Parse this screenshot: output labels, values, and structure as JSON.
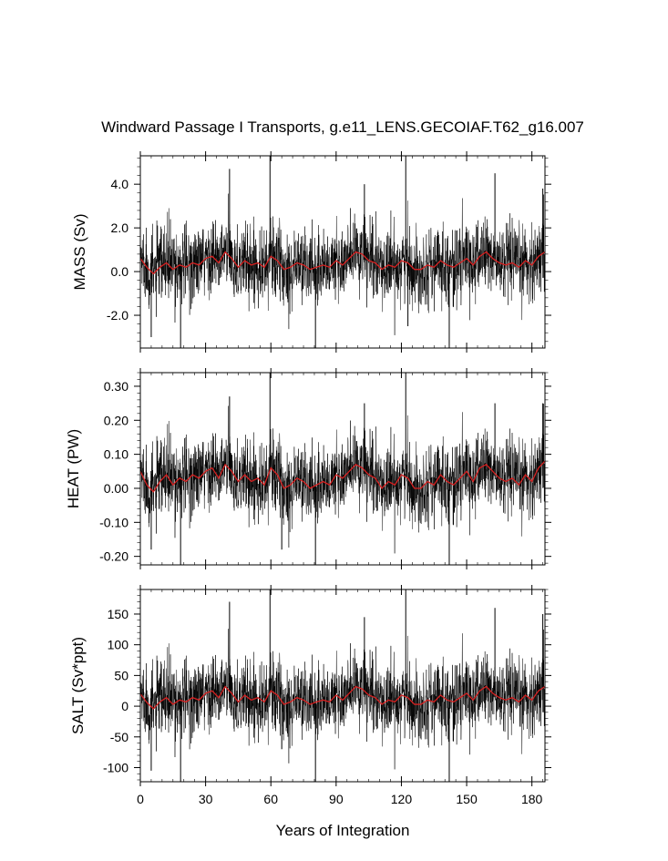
{
  "figure": {
    "title": "Windward Passage I Transports, g.e11_LENS.GECOIAF.T62_g16.007",
    "xlabel": "Years of Integration"
  },
  "colors": {
    "raw_series": "#000000",
    "smoothed_series": "#d62020",
    "axes": "#000000",
    "background": "#ffffff"
  },
  "chart_data": [
    {
      "type": "line",
      "ylabel": "MASS (Sv)",
      "xlim": [
        0,
        186
      ],
      "ylim": [
        -3.5,
        5.3
      ],
      "xticks": [
        0,
        30,
        60,
        90,
        120,
        150,
        180
      ],
      "yticks": [
        -2.0,
        0.0,
        2.0,
        4.0
      ],
      "ytick_labels": [
        "-2.0",
        "0.0",
        "2.0",
        "4.0"
      ],
      "x_tick_labels_shown": false,
      "grid": false,
      "series": [
        {
          "role": "raw",
          "color": "#000000",
          "mean": 0.3,
          "std": 0.85,
          "spikes": [
            [
              41,
              4.7
            ],
            [
              59.6,
              5.3
            ],
            [
              103,
              4.0
            ],
            [
              122,
              5.3
            ],
            [
              163,
              4.5
            ],
            [
              185,
              3.8
            ],
            [
              18.5,
              -3.5
            ],
            [
              80.5,
              -3.5
            ],
            [
              142,
              -3.5
            ],
            [
              5,
              -3.0
            ],
            [
              123,
              -2.5
            ]
          ]
        },
        {
          "role": "smoothed",
          "color": "#d62020",
          "x": [
            0,
            3,
            6,
            9,
            12,
            15,
            18,
            21,
            24,
            27,
            30,
            33,
            36,
            39,
            42,
            45,
            48,
            51,
            54,
            57,
            60,
            63,
            66,
            69,
            72,
            75,
            78,
            81,
            84,
            87,
            90,
            93,
            96,
            99,
            102,
            105,
            108,
            111,
            114,
            117,
            120,
            123,
            126,
            129,
            132,
            135,
            138,
            141,
            144,
            147,
            150,
            153,
            156,
            159,
            162,
            165,
            168,
            171,
            174,
            177,
            180,
            183,
            186
          ],
          "values": [
            0.6,
            0.2,
            -0.1,
            0.2,
            0.4,
            0.1,
            0.3,
            0.2,
            0.4,
            0.3,
            0.6,
            0.7,
            0.4,
            0.9,
            0.6,
            0.2,
            0.5,
            0.3,
            0.4,
            0.2,
            0.7,
            0.5,
            0.1,
            0.2,
            0.4,
            0.3,
            0.1,
            0.2,
            0.3,
            0.2,
            0.5,
            0.3,
            0.6,
            0.9,
            0.8,
            0.5,
            0.4,
            0.1,
            0.3,
            0.2,
            0.5,
            0.4,
            0.1,
            0.1,
            0.3,
            0.2,
            0.5,
            0.3,
            0.2,
            0.4,
            0.6,
            0.3,
            0.7,
            0.9,
            0.6,
            0.4,
            0.3,
            0.4,
            0.2,
            0.5,
            0.3,
            0.7,
            0.9
          ]
        }
      ]
    },
    {
      "type": "line",
      "ylabel": "HEAT (PW)",
      "xlim": [
        0,
        186
      ],
      "ylim": [
        -0.225,
        0.34
      ],
      "xticks": [
        0,
        30,
        60,
        90,
        120,
        150,
        180
      ],
      "yticks": [
        -0.2,
        -0.1,
        0.0,
        0.1,
        0.2,
        0.3
      ],
      "ytick_labels": [
        "-0.20",
        "-0.10",
        "0.00",
        "0.10",
        "0.20",
        "0.30"
      ],
      "x_tick_labels_shown": false,
      "grid": false,
      "series": [
        {
          "role": "raw",
          "color": "#000000",
          "mean": 0.03,
          "std": 0.055,
          "spikes": [
            [
              41,
              0.27
            ],
            [
              59.6,
              0.34
            ],
            [
              103,
              0.25
            ],
            [
              122,
              0.34
            ],
            [
              163,
              0.25
            ],
            [
              185,
              0.25
            ],
            [
              18.5,
              -0.225
            ],
            [
              80.5,
              -0.225
            ],
            [
              142,
              -0.225
            ],
            [
              5,
              -0.18
            ],
            [
              65,
              -0.18
            ]
          ]
        },
        {
          "role": "smoothed",
          "color": "#d62020",
          "x": [
            0,
            3,
            6,
            9,
            12,
            15,
            18,
            21,
            24,
            27,
            30,
            33,
            36,
            39,
            42,
            45,
            48,
            51,
            54,
            57,
            60,
            63,
            66,
            69,
            72,
            75,
            78,
            81,
            84,
            87,
            90,
            93,
            96,
            99,
            102,
            105,
            108,
            111,
            114,
            117,
            120,
            123,
            126,
            129,
            132,
            135,
            138,
            141,
            144,
            147,
            150,
            153,
            156,
            159,
            162,
            165,
            168,
            171,
            174,
            177,
            180,
            183,
            186
          ],
          "values": [
            0.05,
            0.01,
            -0.01,
            0.02,
            0.04,
            0.01,
            0.03,
            0.02,
            0.04,
            0.03,
            0.05,
            0.06,
            0.03,
            0.07,
            0.05,
            0.02,
            0.04,
            0.02,
            0.03,
            0.01,
            0.06,
            0.04,
            0.0,
            0.01,
            0.03,
            0.02,
            0.0,
            0.01,
            0.02,
            0.01,
            0.04,
            0.03,
            0.05,
            0.07,
            0.06,
            0.04,
            0.03,
            0.0,
            0.02,
            0.01,
            0.04,
            0.03,
            0.0,
            0.0,
            0.02,
            0.01,
            0.04,
            0.02,
            0.01,
            0.03,
            0.05,
            0.02,
            0.06,
            0.07,
            0.05,
            0.03,
            0.02,
            0.03,
            0.01,
            0.04,
            0.02,
            0.06,
            0.08
          ]
        }
      ]
    },
    {
      "type": "line",
      "ylabel": "SALT (Sv*ppt)",
      "xlim": [
        0,
        186
      ],
      "ylim": [
        -123,
        190
      ],
      "xticks": [
        0,
        30,
        60,
        90,
        120,
        150,
        180
      ],
      "xtick_labels": [
        "0",
        "30",
        "60",
        "90",
        "120",
        "150",
        "180"
      ],
      "yticks": [
        -100,
        -50,
        0,
        50,
        100,
        150
      ],
      "ytick_labels": [
        "-100",
        "-50",
        "0",
        "50",
        "100",
        "150"
      ],
      "x_tick_labels_shown": true,
      "grid": false,
      "series": [
        {
          "role": "raw",
          "color": "#000000",
          "mean": 11,
          "std": 30,
          "spikes": [
            [
              41,
              170
            ],
            [
              59.6,
              190
            ],
            [
              103,
              145
            ],
            [
              122,
              190
            ],
            [
              163,
              160
            ],
            [
              185,
              150
            ],
            [
              18.5,
              -123
            ],
            [
              80.5,
              -123
            ],
            [
              142,
              -123
            ],
            [
              5,
              -105
            ],
            [
              65,
              -70
            ]
          ]
        },
        {
          "role": "smoothed",
          "color": "#d62020",
          "x": [
            0,
            3,
            6,
            9,
            12,
            15,
            18,
            21,
            24,
            27,
            30,
            33,
            36,
            39,
            42,
            45,
            48,
            51,
            54,
            57,
            60,
            63,
            66,
            69,
            72,
            75,
            78,
            81,
            84,
            87,
            90,
            93,
            96,
            99,
            102,
            105,
            108,
            111,
            114,
            117,
            120,
            123,
            126,
            129,
            132,
            135,
            138,
            141,
            144,
            147,
            150,
            153,
            156,
            159,
            162,
            165,
            168,
            171,
            174,
            177,
            180,
            183,
            186
          ],
          "values": [
            20,
            6,
            -4,
            7,
            14,
            3,
            10,
            7,
            14,
            10,
            21,
            25,
            14,
            32,
            21,
            7,
            18,
            10,
            14,
            7,
            25,
            18,
            3,
            7,
            14,
            10,
            3,
            7,
            10,
            7,
            18,
            10,
            21,
            32,
            28,
            18,
            14,
            3,
            10,
            7,
            18,
            14,
            3,
            3,
            10,
            7,
            18,
            10,
            7,
            14,
            21,
            10,
            25,
            32,
            21,
            14,
            10,
            14,
            7,
            18,
            10,
            25,
            32
          ]
        }
      ]
    }
  ]
}
